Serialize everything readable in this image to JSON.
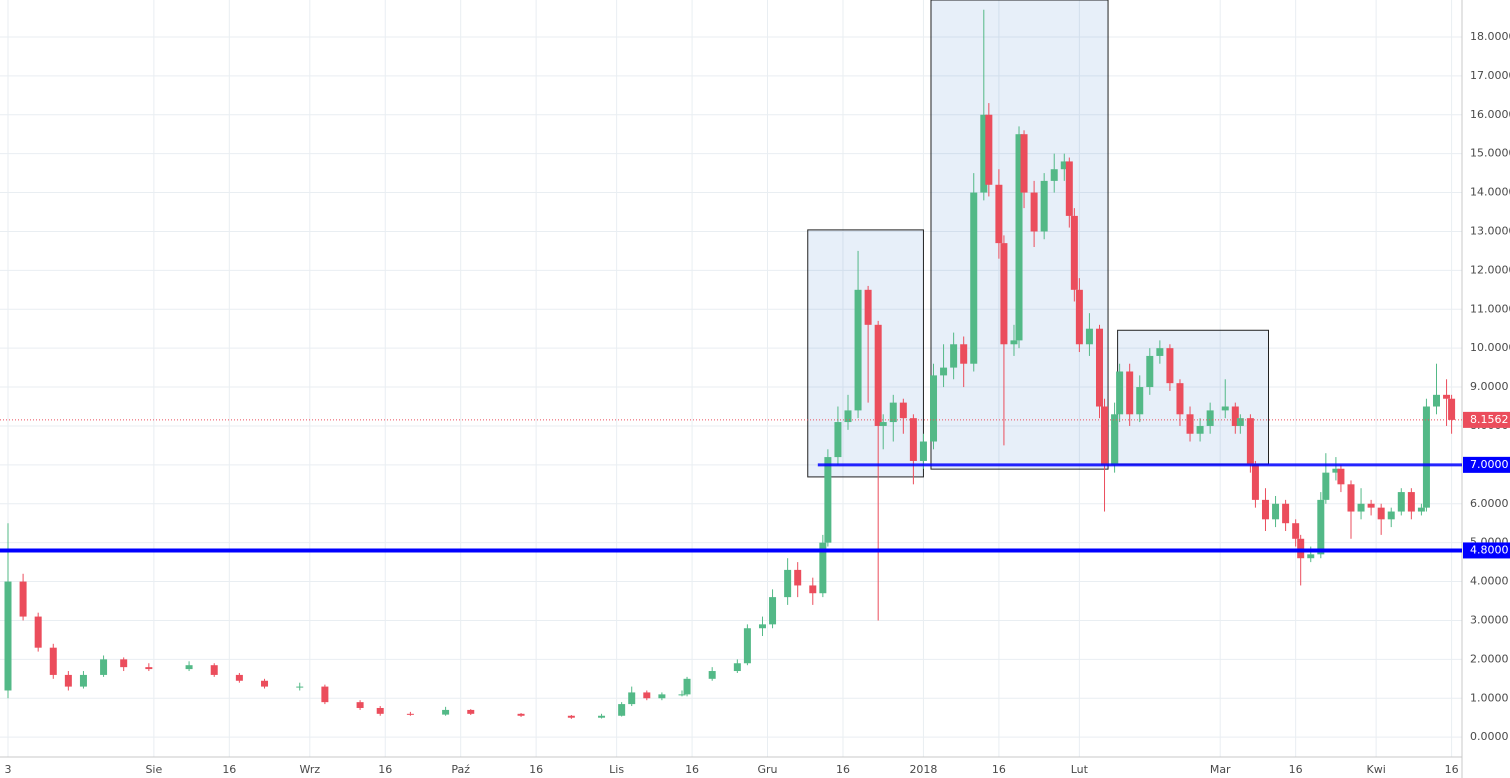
{
  "chart_data": {
    "type": "candlestick",
    "x": [
      0,
      3,
      6,
      9,
      12,
      15,
      19,
      23,
      28,
      36,
      41,
      46,
      51,
      58,
      63,
      70,
      74,
      80,
      87,
      92,
      102,
      112,
      118,
      122,
      124,
      127,
      130,
      134,
      135,
      140,
      145,
      147,
      150,
      152,
      155,
      157,
      160,
      162,
      163,
      165,
      167,
      169,
      171,
      173,
      174,
      176,
      178,
      180,
      182,
      184,
      186,
      188,
      190,
      192,
      194,
      195,
      197,
      198,
      200,
      201,
      202,
      204,
      206,
      208,
      210,
      211,
      212,
      213,
      215,
      217,
      218,
      220,
      221,
      223,
      225,
      227,
      229,
      231,
      233,
      235,
      237,
      239,
      242,
      244,
      245,
      247,
      248,
      250,
      252,
      254,
      256,
      257,
      259,
      261,
      262,
      264,
      265,
      267,
      269,
      271,
      273,
      275,
      277,
      279,
      281,
      282,
      284,
      286,
      287
    ],
    "open": [
      1.2,
      4.0,
      3.1,
      2.3,
      1.6,
      1.3,
      1.6,
      2.0,
      1.8,
      1.75,
      1.85,
      1.6,
      1.45,
      1.3,
      1.3,
      0.9,
      0.75,
      0.6,
      0.58,
      0.7,
      0.6,
      0.55,
      0.5,
      0.55,
      0.85,
      1.15,
      1.0,
      1.1,
      1.1,
      1.5,
      1.7,
      1.9,
      2.8,
      2.9,
      3.6,
      4.3,
      3.9,
      3.7,
      5.0,
      7.2,
      8.1,
      8.4,
      11.5,
      10.6,
      8.0,
      8.1,
      8.6,
      8.2,
      7.1,
      7.6,
      9.3,
      9.5,
      10.1,
      9.6,
      14.0,
      16.0,
      14.2,
      12.7,
      10.1,
      10.2,
      15.5,
      14.0,
      13.0,
      14.3,
      14.6,
      14.8,
      13.4,
      11.5,
      10.1,
      10.5,
      8.5,
      7.0,
      8.3,
      9.4,
      8.3,
      9.0,
      9.8,
      10.0,
      9.1,
      8.3,
      7.8,
      8.0,
      8.4,
      8.5,
      8.0,
      8.2,
      7.0,
      6.1,
      5.6,
      6.0,
      5.5,
      5.1,
      4.6,
      4.7,
      6.1,
      6.8,
      6.9,
      6.5,
      5.8,
      6.0,
      5.9,
      5.6,
      5.8,
      6.3,
      5.8,
      5.9,
      8.5,
      8.8,
      8.7
    ],
    "high": [
      5.5,
      4.2,
      3.2,
      2.4,
      1.7,
      1.7,
      2.1,
      2.05,
      1.9,
      1.95,
      1.9,
      1.65,
      1.5,
      1.4,
      1.35,
      0.95,
      0.8,
      0.65,
      0.78,
      0.72,
      0.62,
      0.57,
      0.6,
      0.9,
      1.3,
      1.2,
      1.15,
      1.2,
      1.55,
      1.8,
      2.0,
      2.9,
      3.1,
      3.8,
      4.6,
      4.5,
      4.1,
      5.2,
      7.4,
      8.5,
      8.8,
      12.5,
      11.6,
      10.7,
      8.3,
      8.8,
      8.7,
      8.3,
      7.8,
      9.6,
      10.1,
      10.4,
      10.3,
      14.5,
      18.7,
      16.3,
      14.6,
      12.9,
      10.6,
      15.7,
      15.6,
      14.3,
      14.5,
      15.0,
      15.0,
      14.9,
      13.6,
      11.8,
      10.9,
      10.6,
      8.7,
      8.6,
      9.6,
      9.6,
      9.3,
      10.0,
      10.2,
      10.1,
      9.2,
      8.5,
      8.2,
      8.6,
      9.2,
      8.6,
      8.3,
      8.3,
      7.1,
      6.4,
      6.2,
      6.1,
      5.6,
      5.2,
      4.9,
      6.3,
      7.3,
      7.2,
      7.0,
      6.6,
      6.4,
      6.1,
      6.0,
      5.9,
      6.4,
      6.4,
      6.0,
      8.7,
      9.6,
      9.2,
      8.8
    ],
    "low": [
      1.0,
      3.0,
      2.2,
      1.5,
      1.2,
      1.25,
      1.55,
      1.7,
      1.7,
      1.7,
      1.55,
      1.4,
      1.25,
      1.2,
      0.85,
      0.7,
      0.55,
      0.55,
      0.55,
      0.57,
      0.52,
      0.47,
      0.48,
      0.53,
      0.8,
      0.95,
      0.95,
      1.05,
      1.05,
      1.45,
      1.65,
      1.85,
      2.6,
      2.8,
      3.4,
      3.6,
      3.4,
      3.6,
      4.9,
      7.0,
      7.9,
      8.2,
      8.6,
      3.0,
      7.4,
      7.6,
      7.8,
      6.5,
      6.9,
      7.4,
      9.0,
      9.2,
      9.0,
      9.4,
      13.8,
      13.9,
      12.3,
      7.5,
      9.8,
      10.0,
      13.6,
      12.6,
      12.8,
      14.0,
      14.3,
      13.1,
      11.2,
      9.9,
      9.8,
      8.2,
      5.8,
      6.8,
      8.1,
      8.0,
      8.1,
      8.8,
      9.6,
      8.9,
      8.0,
      7.6,
      7.6,
      7.8,
      8.2,
      7.8,
      7.8,
      6.8,
      5.9,
      5.3,
      5.4,
      5.3,
      4.9,
      3.9,
      4.5,
      4.6,
      6.0,
      6.6,
      6.3,
      5.1,
      5.6,
      5.7,
      5.2,
      5.4,
      5.7,
      5.6,
      5.7,
      5.8,
      8.3,
      8.0,
      7.8
    ],
    "close": [
      4.0,
      3.1,
      2.3,
      1.6,
      1.3,
      1.6,
      2.0,
      1.8,
      1.75,
      1.85,
      1.6,
      1.45,
      1.3,
      1.3,
      0.9,
      0.75,
      0.6,
      0.58,
      0.7,
      0.6,
      0.55,
      0.5,
      0.55,
      0.85,
      1.15,
      1.0,
      1.1,
      1.1,
      1.5,
      1.7,
      1.9,
      2.8,
      2.9,
      3.6,
      4.3,
      3.9,
      3.7,
      5.0,
      7.2,
      8.1,
      8.4,
      11.5,
      10.6,
      8.0,
      8.1,
      8.6,
      8.2,
      7.1,
      7.6,
      9.3,
      9.5,
      10.1,
      9.6,
      14.0,
      16.0,
      14.2,
      12.7,
      10.1,
      10.2,
      15.5,
      14.0,
      13.0,
      14.3,
      14.6,
      14.8,
      13.4,
      11.5,
      10.1,
      10.5,
      8.5,
      7.0,
      8.3,
      9.4,
      8.3,
      9.0,
      9.8,
      10.0,
      9.1,
      8.3,
      7.8,
      8.0,
      8.4,
      8.5,
      8.0,
      8.2,
      7.0,
      6.1,
      5.6,
      6.0,
      5.5,
      5.1,
      4.6,
      4.7,
      6.1,
      6.8,
      6.9,
      6.5,
      5.8,
      6.0,
      5.9,
      5.6,
      5.8,
      6.3,
      5.8,
      5.9,
      8.5,
      8.8,
      8.7,
      8.1562
    ],
    "up_color": "#53b987",
    "down_color": "#eb4d5c",
    "xlim": [
      -1.59,
      289.07
    ],
    "xticks": [
      {
        "value": 0,
        "label": "3"
      },
      {
        "value": 29,
        "label": "Sie"
      },
      {
        "value": 44,
        "label": "16"
      },
      {
        "value": 60,
        "label": "Wrz"
      },
      {
        "value": 75,
        "label": "16"
      },
      {
        "value": 90,
        "label": "Paź"
      },
      {
        "value": 105,
        "label": "16"
      },
      {
        "value": 121,
        "label": "Lis"
      },
      {
        "value": 136,
        "label": "16"
      },
      {
        "value": 151,
        "label": "Gru"
      },
      {
        "value": 166,
        "label": "16"
      },
      {
        "value": 182,
        "label": "2018"
      },
      {
        "value": 197,
        "label": "16"
      },
      {
        "value": 213,
        "label": "Lut"
      },
      {
        "value": 241,
        "label": "Mar"
      },
      {
        "value": 256,
        "label": "16"
      },
      {
        "value": 272,
        "label": "Kwi"
      },
      {
        "value": 287,
        "label": "16"
      }
    ],
    "ylim": [
      -0.51,
      18.95
    ],
    "yticks": [
      {
        "value": 0,
        "label": "0.0000"
      },
      {
        "value": 1,
        "label": "1.0000"
      },
      {
        "value": 2,
        "label": "2.0000"
      },
      {
        "value": 3,
        "label": "3.0000"
      },
      {
        "value": 4,
        "label": "4.0000"
      },
      {
        "value": 5,
        "label": "5.0000"
      },
      {
        "value": 6,
        "label": "6.0000"
      },
      {
        "value": 7,
        "label": "7.0000"
      },
      {
        "value": 8,
        "label": "8.0000"
      },
      {
        "value": 9,
        "label": "9.0000"
      },
      {
        "value": 10,
        "label": "10.0000"
      },
      {
        "value": 11,
        "label": "11.0000"
      },
      {
        "value": 12,
        "label": "12.0000"
      },
      {
        "value": 13,
        "label": "13.0000"
      },
      {
        "value": 14,
        "label": "14.0000"
      },
      {
        "value": 15,
        "label": "15.0000"
      },
      {
        "value": 16,
        "label": "16.0000"
      },
      {
        "value": 17,
        "label": "17.0000"
      },
      {
        "value": 18,
        "label": "18.0000"
      }
    ],
    "grid": true,
    "levels": [
      {
        "value": 7,
        "label": "7.0000",
        "x_start": 161,
        "color": "#0000ff"
      },
      {
        "value": 4.8,
        "label": "4.8000",
        "color": "#0000ff"
      }
    ],
    "last_price": {
      "value": 8.1562,
      "label": "8.1562",
      "color": "#eb4d5c"
    },
    "zones": [
      {
        "x": [
          159,
          182
        ],
        "y": [
          6.69,
          13.04
        ]
      },
      {
        "x": [
          183.5,
          218.7
        ],
        "y": [
          6.89,
          18.95
        ]
      },
      {
        "x": [
          220.6,
          250.6
        ],
        "y": [
          7.02,
          10.46
        ]
      }
    ]
  }
}
